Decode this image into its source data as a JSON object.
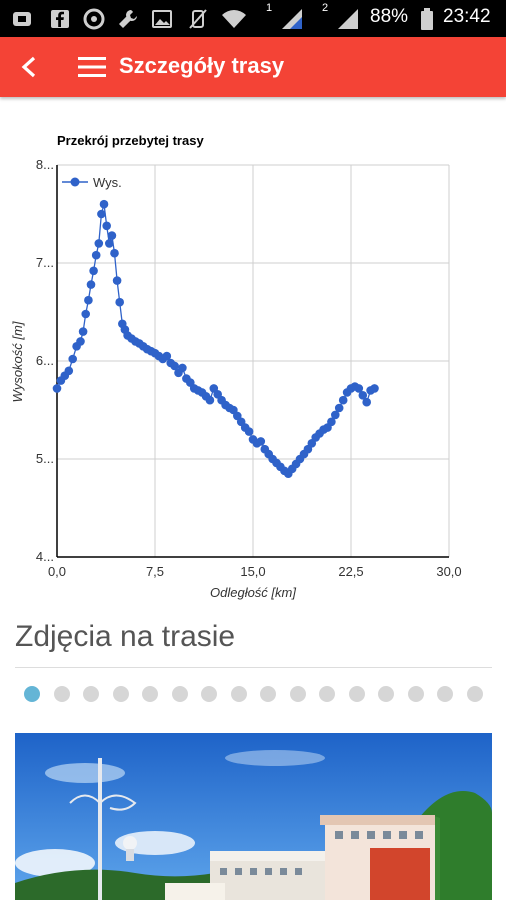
{
  "statusbar": {
    "battery_percent": "88%",
    "time": "23:42",
    "sim1": "1",
    "sim2": "2"
  },
  "appbar": {
    "title": "Szczegóły trasy",
    "color": "#f44336"
  },
  "photos": {
    "title": "Zdjęcia na trasie",
    "dot_count": 16,
    "active_index": 0
  },
  "chart_data": {
    "type": "line",
    "title": "Przekrój przebytej trasy",
    "xlabel": "Odległość [km]",
    "ylabel": "Wysokość [m]",
    "xlim": [
      0,
      30
    ],
    "ylim": [
      4,
      8
    ],
    "x_ticks": [
      "0,0",
      "7,5",
      "15,0",
      "22,5",
      "30,0"
    ],
    "y_ticks": [
      "4...",
      "5...",
      "6...",
      "7...",
      "8..."
    ],
    "grid": true,
    "legend_position": "top-left",
    "series": [
      {
        "name": "Wys.",
        "color": "#2f62c9",
        "x": [
          0.0,
          0.3,
          0.6,
          0.9,
          1.2,
          1.5,
          1.8,
          2.0,
          2.2,
          2.4,
          2.6,
          2.8,
          3.0,
          3.2,
          3.4,
          3.6,
          3.8,
          4.0,
          4.2,
          4.4,
          4.6,
          4.8,
          5.0,
          5.2,
          5.4,
          5.7,
          6.0,
          6.3,
          6.6,
          6.9,
          7.2,
          7.5,
          7.8,
          8.1,
          8.4,
          8.7,
          9.0,
          9.3,
          9.6,
          9.9,
          10.2,
          10.5,
          10.8,
          11.1,
          11.4,
          11.7,
          12.0,
          12.3,
          12.6,
          12.9,
          13.2,
          13.5,
          13.8,
          14.1,
          14.4,
          14.7,
          15.0,
          15.3,
          15.6,
          15.9,
          16.2,
          16.5,
          16.8,
          17.1,
          17.4,
          17.7,
          18.0,
          18.3,
          18.6,
          18.9,
          19.2,
          19.5,
          19.8,
          20.1,
          20.4,
          20.7,
          21.0,
          21.3,
          21.6,
          21.9,
          22.2,
          22.5,
          22.8,
          23.1,
          23.4,
          23.7,
          24.0,
          24.3
        ],
        "y": [
          5.72,
          5.8,
          5.85,
          5.9,
          6.02,
          6.15,
          6.2,
          6.3,
          6.48,
          6.62,
          6.78,
          6.92,
          7.08,
          7.2,
          7.5,
          7.6,
          7.38,
          7.2,
          7.28,
          7.1,
          6.82,
          6.6,
          6.38,
          6.32,
          6.26,
          6.23,
          6.2,
          6.18,
          6.15,
          6.12,
          6.1,
          6.08,
          6.05,
          6.02,
          6.05,
          5.98,
          5.95,
          5.88,
          5.93,
          5.82,
          5.78,
          5.72,
          5.7,
          5.68,
          5.64,
          5.6,
          5.72,
          5.66,
          5.6,
          5.55,
          5.52,
          5.5,
          5.44,
          5.38,
          5.32,
          5.28,
          5.2,
          5.16,
          5.18,
          5.1,
          5.05,
          5.0,
          4.96,
          4.92,
          4.88,
          4.85,
          4.9,
          4.95,
          5.0,
          5.05,
          5.1,
          5.16,
          5.22,
          5.26,
          5.3,
          5.32,
          5.38,
          5.45,
          5.52,
          5.6,
          5.68,
          5.72,
          5.74,
          5.72,
          5.65,
          5.58,
          5.7,
          5.72
        ]
      }
    ]
  }
}
